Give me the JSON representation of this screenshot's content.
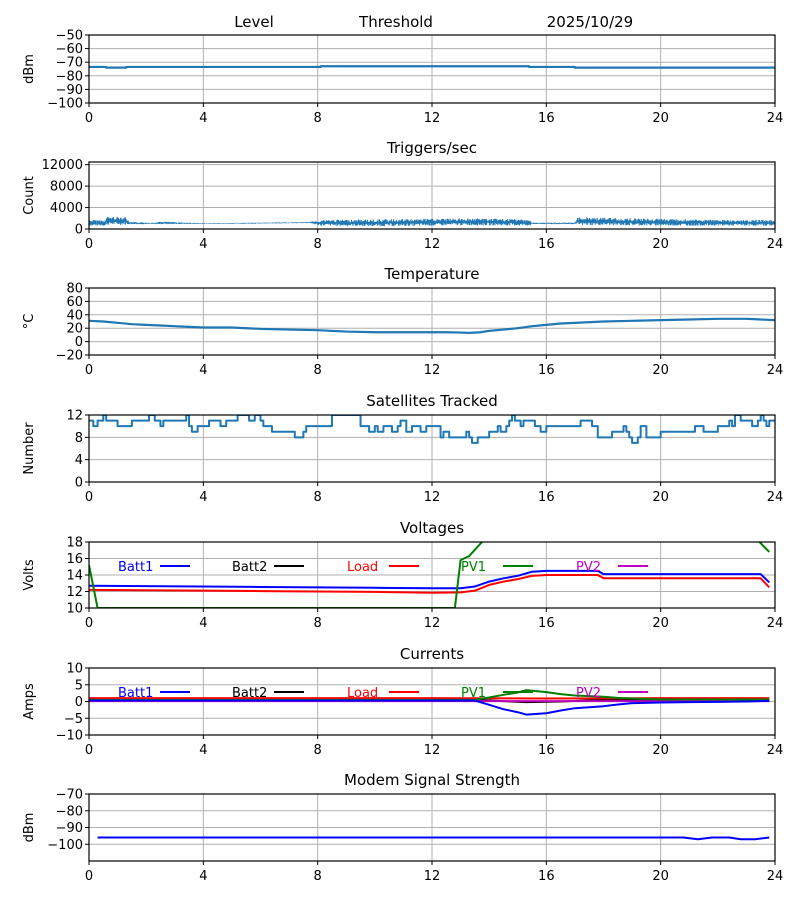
{
  "header": {
    "labels": [
      "Level",
      "Threshold",
      "2025/10/29"
    ]
  },
  "chart_data": [
    {
      "id": "level",
      "type": "line",
      "title": "",
      "ylabel": "dBm",
      "xlim": [
        0,
        24
      ],
      "ylim": [
        -100,
        -50
      ],
      "xticks": [
        0,
        4,
        8,
        12,
        16,
        20,
        24
      ],
      "yticks": [
        -50,
        -60,
        -70,
        -80,
        -90,
        -100
      ],
      "ytick_labels": [
        "−50",
        "−60",
        "−70",
        "−80",
        "−90",
        "−100"
      ],
      "grid": true,
      "series": [
        {
          "name": "Level",
          "color": "#1f77b4",
          "width": 2.2,
          "x": [
            0,
            0.6,
            0.6,
            1.3,
            1.3,
            8.1,
            8.1,
            15.4,
            15.4,
            17.0,
            17.0,
            24
          ],
          "y": [
            -73.5,
            -73.5,
            -74,
            -74,
            -73.5,
            -73.5,
            -73,
            -73,
            -73.5,
            -73.5,
            -74,
            -74
          ]
        }
      ]
    },
    {
      "id": "triggers",
      "type": "line",
      "title": "Triggers/sec",
      "ylabel": "Count",
      "xlim": [
        0,
        24
      ],
      "ylim": [
        0,
        12500
      ],
      "xticks": [
        0,
        4,
        8,
        12,
        16,
        20,
        24
      ],
      "yticks": [
        0,
        4000,
        8000,
        12000
      ],
      "ytick_labels": [
        "0",
        "4000",
        "8000",
        "12000"
      ],
      "grid": true,
      "series": [
        {
          "name": "Triggers",
          "color": "#1f77b4",
          "width": 1,
          "noisy": true,
          "x": [
            0,
            0.6,
            0.6,
            1.3,
            1.4,
            2.3,
            2.5,
            4,
            6,
            7.7,
            8.1,
            10,
            12,
            13.3,
            15.4,
            15.5,
            17.0,
            17.1,
            18,
            20,
            22,
            24
          ],
          "lo": [
            600,
            600,
            800,
            800,
            900,
            900,
            900,
            950,
            1000,
            1100,
            600,
            500,
            600,
            700,
            600,
            900,
            900,
            700,
            700,
            600,
            600,
            600
          ],
          "hi": [
            1700,
            1700,
            2300,
            2300,
            1300,
            1200,
            1400,
            1100,
            1200,
            1300,
            1700,
            1800,
            1900,
            2000,
            1800,
            1200,
            1200,
            2200,
            2100,
            1900,
            1700,
            1700
          ]
        }
      ]
    },
    {
      "id": "temperature",
      "type": "line",
      "title": "Temperature",
      "ylabel": "°C",
      "xlim": [
        0,
        24
      ],
      "ylim": [
        -20,
        80
      ],
      "xticks": [
        0,
        4,
        8,
        12,
        16,
        20,
        24
      ],
      "yticks": [
        -20,
        0,
        20,
        40,
        60,
        80
      ],
      "ytick_labels": [
        "−20",
        "0",
        "20",
        "40",
        "60",
        "80"
      ],
      "grid": true,
      "series": [
        {
          "name": "Temperature",
          "color": "#1f77b4",
          "width": 2.2,
          "x": [
            0,
            0.5,
            1,
            1.5,
            2,
            2.5,
            3,
            3.5,
            4,
            5,
            6,
            7,
            8,
            9,
            10,
            11,
            12,
            12.5,
            13,
            13.3,
            13.7,
            14,
            14.5,
            15,
            15.5,
            16,
            16.5,
            17,
            18,
            19,
            20,
            21,
            22,
            23,
            23.5,
            24
          ],
          "y": [
            31,
            30,
            28,
            26,
            25,
            24,
            23,
            22,
            21,
            21,
            19,
            18,
            17,
            15,
            14,
            14,
            14,
            14,
            13.5,
            13,
            14,
            16,
            18,
            20,
            23,
            25,
            27,
            28,
            30,
            31,
            32,
            33,
            34,
            34,
            33,
            32
          ]
        }
      ]
    },
    {
      "id": "satellites",
      "type": "line",
      "title": "Satellites Tracked",
      "ylabel": "Number",
      "xlim": [
        0,
        24
      ],
      "ylim": [
        0,
        12
      ],
      "xticks": [
        0,
        4,
        8,
        12,
        16,
        20,
        24
      ],
      "yticks": [
        0,
        4,
        8,
        12
      ],
      "ytick_labels": [
        "0",
        "4",
        "8",
        "12"
      ],
      "grid": true,
      "step": true,
      "series": [
        {
          "name": "Satellites",
          "color": "#1f77b4",
          "width": 2,
          "x": [
            0,
            0.15,
            0.3,
            0.5,
            0.6,
            0.8,
            1.0,
            1.4,
            1.5,
            1.6,
            2.0,
            2.1,
            2.3,
            2.5,
            2.6,
            3.2,
            3.4,
            3.5,
            3.6,
            3.8,
            4.2,
            4.6,
            4.8,
            5.1,
            5.2,
            5.6,
            5.8,
            6.0,
            6.1,
            6.2,
            6.4,
            6.5,
            7.0,
            7.2,
            7.5,
            7.6,
            8.4,
            8.5,
            9.3,
            9.5,
            9.8,
            10.0,
            10.1,
            10.3,
            10.5,
            10.6,
            10.8,
            10.9,
            11.1,
            11.3,
            11.6,
            11.8,
            12.3,
            12.4,
            12.6,
            13.0,
            13.2,
            13.3,
            13.4,
            13.6,
            14.0,
            14.2,
            14.3,
            14.4,
            14.6,
            14.7,
            14.8,
            14.9,
            15.1,
            15.2,
            15.6,
            15.8,
            16.0,
            16.4,
            17.2,
            17.5,
            17.6,
            17.8,
            18.3,
            18.6,
            18.7,
            18.8,
            18.9,
            19.0,
            19.2,
            19.3,
            19.5,
            20.0,
            21.0,
            21.2,
            21.5,
            21.6,
            22.0,
            22.4,
            22.5,
            22.6,
            22.8,
            23.2,
            23.4,
            23.5,
            23.6,
            23.7,
            23.8,
            24
          ],
          "y": [
            11,
            10,
            11,
            12,
            11,
            11,
            10,
            10,
            11,
            11,
            11,
            12,
            11,
            10,
            11,
            11,
            12,
            10,
            9,
            10,
            11,
            10,
            11,
            11,
            12,
            11,
            12,
            11,
            10,
            10,
            9,
            9,
            9,
            8,
            9,
            10,
            10,
            12,
            12,
            10,
            9,
            10,
            9,
            10,
            10,
            9,
            10,
            11,
            9,
            10,
            9,
            10,
            8,
            9,
            8,
            8,
            9,
            8,
            7,
            8,
            9,
            9,
            10,
            9,
            10,
            11,
            12,
            11,
            10,
            11,
            10,
            9,
            10,
            10,
            11,
            11,
            10,
            8,
            9,
            9,
            10,
            9,
            8,
            7,
            8,
            10,
            8,
            9,
            9,
            10,
            9,
            9,
            10,
            11,
            10,
            12,
            11,
            10,
            11,
            12,
            11,
            10,
            11,
            11
          ]
        }
      ]
    },
    {
      "id": "voltages",
      "type": "line",
      "title": "Voltages",
      "ylabel": "Volts",
      "xlim": [
        0,
        24
      ],
      "ylim": [
        10,
        18
      ],
      "xticks": [
        0,
        4,
        8,
        12,
        16,
        20,
        24
      ],
      "yticks": [
        10,
        12,
        14,
        16,
        18
      ],
      "ytick_labels": [
        "10",
        "12",
        "14",
        "16",
        "18"
      ],
      "grid": true,
      "legend": "top-inline",
      "series": [
        {
          "name": "Batt1",
          "color": "#0000ff",
          "width": 2,
          "x": [
            0,
            2,
            4,
            6,
            8,
            10,
            12,
            13,
            13.5,
            14,
            14.5,
            15,
            15.5,
            16,
            17,
            17.8,
            18,
            19,
            20,
            22,
            23.5,
            23.8
          ],
          "y": [
            12.7,
            12.65,
            12.6,
            12.55,
            12.5,
            12.45,
            12.4,
            12.4,
            12.6,
            13.2,
            13.6,
            13.9,
            14.4,
            14.5,
            14.5,
            14.5,
            14.1,
            14.1,
            14.1,
            14.1,
            14.1,
            13.1
          ]
        },
        {
          "name": "Batt2",
          "color": "#000000",
          "width": 2,
          "x": [],
          "y": []
        },
        {
          "name": "Load",
          "color": "#ff0000",
          "width": 2,
          "x": [
            0,
            2,
            4,
            6,
            8,
            10,
            12,
            13,
            13.5,
            14,
            14.5,
            15,
            15.5,
            16,
            17,
            17.8,
            18,
            19,
            20,
            22,
            23.5,
            23.8
          ],
          "y": [
            12.2,
            12.15,
            12.1,
            12.05,
            12.0,
            11.95,
            11.85,
            11.9,
            12.1,
            12.8,
            13.2,
            13.5,
            13.9,
            14.0,
            14.0,
            14.0,
            13.6,
            13.6,
            13.6,
            13.6,
            13.6,
            12.5
          ]
        },
        {
          "name": "PV1",
          "color": "#008000",
          "width": 2,
          "x": [
            0,
            0.3,
            12.8,
            13.0,
            13.3,
            13.8,
            23.4,
            23.8
          ],
          "y": [
            15.2,
            10,
            10,
            15.8,
            16.3,
            18.2,
            18.2,
            16.8
          ]
        },
        {
          "name": "PV2",
          "color": "#bf00bf",
          "width": 2,
          "x": [],
          "y": []
        }
      ]
    },
    {
      "id": "currents",
      "type": "line",
      "title": "Currents",
      "ylabel": "Amps",
      "xlim": [
        0,
        24
      ],
      "ylim": [
        -10,
        10
      ],
      "xticks": [
        0,
        4,
        8,
        12,
        16,
        20,
        24
      ],
      "yticks": [
        -10,
        -5,
        0,
        5,
        10
      ],
      "ytick_labels": [
        "−10",
        "−5",
        "0",
        "5",
        "10"
      ],
      "grid": true,
      "legend": "top-inline",
      "series": [
        {
          "name": "Batt2",
          "color": "#000000",
          "width": 2,
          "x": [
            0,
            0.5,
            1,
            13.5,
            15.3,
            16.5,
            18,
            20,
            23.8
          ],
          "y": [
            0.8,
            0.5,
            0.5,
            0.5,
            -0.2,
            0,
            0.5,
            0.5,
            0.5
          ]
        },
        {
          "name": "PV2",
          "color": "#bf00bf",
          "width": 2,
          "x": [
            0,
            23.8
          ],
          "y": [
            0.1,
            0.1
          ]
        },
        {
          "name": "Load",
          "color": "#ff0000",
          "width": 2,
          "x": [
            0,
            4,
            8,
            12,
            16,
            20,
            23.8
          ],
          "y": [
            1.0,
            1.0,
            1.0,
            1.0,
            0.9,
            1.0,
            1.0
          ]
        },
        {
          "name": "PV1",
          "color": "#008000",
          "width": 2,
          "x": [
            0,
            13.5,
            14,
            14.5,
            15,
            15.3,
            16,
            16.5,
            17,
            18,
            18.5,
            19,
            20,
            23.8
          ],
          "y": [
            0.5,
            0.5,
            1.2,
            2.0,
            2.7,
            3.4,
            2.8,
            2.2,
            1.8,
            1.4,
            1.1,
            0.9,
            0.6,
            0.6
          ]
        },
        {
          "name": "Batt1",
          "color": "#0000ff",
          "width": 2,
          "x": [
            0,
            13.5,
            14,
            14.5,
            15,
            15.3,
            16,
            16.5,
            17,
            17.5,
            18,
            18.5,
            19,
            20,
            21,
            22,
            23,
            23.8
          ],
          "y": [
            0.3,
            0.3,
            -1.0,
            -2.3,
            -3.2,
            -3.9,
            -3.5,
            -2.7,
            -2.0,
            -1.7,
            -1.4,
            -0.9,
            -0.5,
            -0.3,
            -0.2,
            -0.1,
            0.0,
            0.2
          ]
        }
      ]
    },
    {
      "id": "modem",
      "type": "line",
      "title": "Modem Signal Strength",
      "ylabel": "dBm",
      "xlim": [
        0,
        24
      ],
      "ylim": [
        -110,
        -70
      ],
      "xticks": [
        0,
        4,
        8,
        12,
        16,
        20,
        24
      ],
      "yticks": [
        -70,
        -80,
        -90,
        -100
      ],
      "ytick_labels": [
        "−70",
        "−80",
        "−90",
        "−100"
      ],
      "grid": true,
      "series": [
        {
          "name": "Modem",
          "color": "#0000ff",
          "width": 2,
          "x": [
            0.3,
            20.8,
            21.3,
            21.8,
            22.4,
            22.8,
            23.3,
            23.8
          ],
          "y": [
            -96,
            -96,
            -97,
            -96,
            -96,
            -97,
            -97,
            -96
          ]
        }
      ]
    }
  ],
  "legend": {
    "entries": [
      {
        "name": "Batt1",
        "color": "#0000ff"
      },
      {
        "name": "Batt2",
        "color": "#000000"
      },
      {
        "name": "Load",
        "color": "#ff0000"
      },
      {
        "name": "PV1",
        "color": "#008000"
      },
      {
        "name": "PV2",
        "color": "#bf00bf"
      }
    ]
  }
}
